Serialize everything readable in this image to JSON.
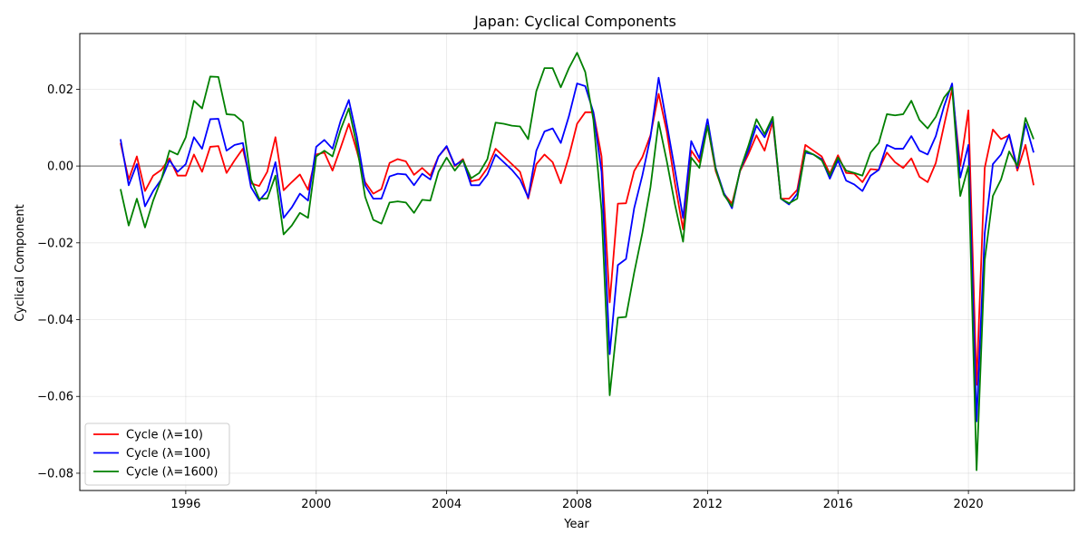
{
  "chart_data": {
    "type": "line",
    "title": "Japan: Cyclical Components",
    "xlabel": "Year",
    "ylabel": "Cyclical Component",
    "xlim": [
      1992.75,
      2023.25
    ],
    "ylim": [
      -0.0845,
      0.0345
    ],
    "xticks": [
      1996,
      2000,
      2004,
      2008,
      2012,
      2016,
      2020
    ],
    "yticks": [
      -0.08,
      -0.06,
      -0.04,
      -0.02,
      0.0,
      0.02
    ],
    "ytick_labels": [
      "−0.08",
      "−0.06",
      "−0.04",
      "−0.02",
      "0.00",
      "0.02"
    ],
    "grid": true,
    "zero_line": true,
    "legend_position": "lower-left",
    "x": [
      1994.0,
      1994.25,
      1994.5,
      1994.75,
      1995.0,
      1995.25,
      1995.5,
      1995.75,
      1996.0,
      1996.25,
      1996.5,
      1996.75,
      1997.0,
      1997.25,
      1997.5,
      1997.75,
      1998.0,
      1998.25,
      1998.5,
      1998.75,
      1999.0,
      1999.25,
      1999.5,
      1999.75,
      2000.0,
      2000.25,
      2000.5,
      2000.75,
      2001.0,
      2001.25,
      2001.5,
      2001.75,
      2002.0,
      2002.25,
      2002.5,
      2002.75,
      2003.0,
      2003.25,
      2003.5,
      2003.75,
      2004.0,
      2004.25,
      2004.5,
      2004.75,
      2005.0,
      2005.25,
      2005.5,
      2005.75,
      2006.0,
      2006.25,
      2006.5,
      2006.75,
      2007.0,
      2007.25,
      2007.5,
      2007.75,
      2008.0,
      2008.25,
      2008.5,
      2008.75,
      2009.0,
      2009.25,
      2009.5,
      2009.75,
      2010.0,
      2010.25,
      2010.5,
      2010.75,
      2011.0,
      2011.25,
      2011.5,
      2011.75,
      2012.0,
      2012.25,
      2012.5,
      2012.75,
      2013.0,
      2013.25,
      2013.5,
      2013.75,
      2014.0,
      2014.25,
      2014.5,
      2014.75,
      2015.0,
      2015.25,
      2015.5,
      2015.75,
      2016.0,
      2016.25,
      2016.5,
      2016.75,
      2017.0,
      2017.25,
      2017.5,
      2017.75,
      2018.0,
      2018.25,
      2018.5,
      2018.75,
      2019.0,
      2019.25,
      2019.5,
      2019.75,
      2020.0,
      2020.25,
      2020.5,
      2020.75,
      2021.0,
      2021.25,
      2021.5,
      2021.75,
      2022.0
    ],
    "series": [
      {
        "name": "Cycle (λ=10)",
        "color": "#ff0000",
        "values": [
          0.006,
          -0.0035,
          0.0025,
          -0.0065,
          -0.0025,
          -0.001,
          0.002,
          -0.0025,
          -0.0025,
          0.003,
          -0.0015,
          0.005,
          0.0052,
          -0.0018,
          0.0015,
          0.0045,
          -0.0045,
          -0.0052,
          -0.0015,
          0.0075,
          -0.0063,
          -0.0042,
          -0.0022,
          -0.0062,
          0.003,
          0.0035,
          -0.0012,
          0.0048,
          0.011,
          0.0038,
          -0.0042,
          -0.0072,
          -0.006,
          0.0008,
          0.0018,
          0.0012,
          -0.0023,
          -0.0005,
          -0.0025,
          0.0025,
          0.005,
          0.0,
          0.0018,
          -0.004,
          -0.0035,
          -0.0005,
          0.0045,
          0.0025,
          0.0005,
          -0.0015,
          -0.0085,
          0.0005,
          0.003,
          0.001,
          -0.0045,
          0.0025,
          0.011,
          0.014,
          0.014,
          0.0025,
          -0.0355,
          -0.0098,
          -0.0097,
          -0.0013,
          0.0023,
          0.008,
          0.0188,
          0.009,
          -0.0045,
          -0.0165,
          0.004,
          0.001,
          0.0105,
          -0.0013,
          -0.0072,
          -0.0098,
          -0.0013,
          0.003,
          0.008,
          0.004,
          0.0115,
          -0.0085,
          -0.0085,
          -0.0062,
          0.0055,
          0.004,
          0.0025,
          -0.002,
          0.0028,
          -0.0018,
          -0.002,
          -0.0042,
          -0.0008,
          -0.001,
          0.0035,
          0.001,
          -0.0005,
          0.002,
          -0.0028,
          -0.0042,
          0.0008,
          0.0105,
          0.02,
          0.0,
          0.0145,
          -0.057,
          -0.0005,
          0.0095,
          0.007,
          0.008,
          -0.0012,
          0.0055,
          -0.005
        ]
      },
      {
        "name": "Cycle (λ=100)",
        "color": "#0000ff",
        "values": [
          0.007,
          -0.005,
          0.0005,
          -0.0105,
          -0.0065,
          -0.0035,
          0.0015,
          -0.0015,
          0.0005,
          0.0075,
          0.0045,
          0.0122,
          0.0123,
          0.004,
          0.0055,
          0.006,
          -0.0055,
          -0.009,
          -0.0065,
          0.001,
          -0.0135,
          -0.0108,
          -0.0072,
          -0.009,
          0.005,
          0.0068,
          0.0045,
          0.0118,
          0.0172,
          0.0075,
          -0.005,
          -0.0085,
          -0.0085,
          -0.0027,
          -0.002,
          -0.0022,
          -0.005,
          -0.002,
          -0.0035,
          0.0025,
          0.0052,
          0.0002,
          0.0015,
          -0.005,
          -0.005,
          -0.0022,
          0.003,
          0.001,
          -0.001,
          -0.0035,
          -0.0082,
          0.004,
          0.009,
          0.0098,
          0.006,
          0.013,
          0.0215,
          0.0208,
          0.014,
          -0.0015,
          -0.049,
          -0.0258,
          -0.0242,
          -0.011,
          -0.0025,
          0.0075,
          0.023,
          0.011,
          -0.001,
          -0.0135,
          0.0065,
          0.002,
          0.0122,
          -0.0005,
          -0.007,
          -0.011,
          -0.001,
          0.004,
          0.0105,
          0.0075,
          0.0122,
          -0.0085,
          -0.01,
          -0.0072,
          0.0035,
          0.003,
          0.0018,
          -0.0033,
          0.0015,
          -0.0038,
          -0.0048,
          -0.0065,
          -0.0025,
          -0.001,
          0.0055,
          0.0045,
          0.0045,
          0.0078,
          0.004,
          0.003,
          0.0078,
          0.0155,
          0.0215,
          -0.003,
          0.0055,
          -0.0665,
          -0.0175,
          0.0005,
          0.003,
          0.0082,
          -0.0005,
          0.011,
          0.0035
        ]
      },
      {
        "name": "Cycle (λ=1600)",
        "color": "#008000",
        "values": [
          -0.006,
          -0.0155,
          -0.0085,
          -0.016,
          -0.009,
          -0.0035,
          0.004,
          0.003,
          0.0075,
          0.017,
          0.015,
          0.0233,
          0.0232,
          0.0135,
          0.0133,
          0.0115,
          -0.0035,
          -0.0085,
          -0.0085,
          -0.0025,
          -0.0178,
          -0.0155,
          -0.0122,
          -0.0135,
          0.0025,
          0.004,
          0.0025,
          0.0095,
          0.015,
          0.0052,
          -0.008,
          -0.014,
          -0.015,
          -0.0095,
          -0.0092,
          -0.0095,
          -0.0122,
          -0.0088,
          -0.009,
          -0.0015,
          0.0022,
          -0.0012,
          0.0015,
          -0.0032,
          -0.0018,
          0.0018,
          0.0113,
          0.011,
          0.0105,
          0.0103,
          0.007,
          0.0195,
          0.0255,
          0.0255,
          0.0205,
          0.0255,
          0.0295,
          0.0245,
          0.012,
          -0.0115,
          -0.0597,
          -0.0395,
          -0.0393,
          -0.0278,
          -0.0175,
          -0.0055,
          0.0115,
          0.0013,
          -0.01,
          -0.0197,
          0.0022,
          -0.0005,
          0.0105,
          -0.0008,
          -0.0075,
          -0.0105,
          -0.001,
          0.0052,
          0.0122,
          0.0083,
          0.0128,
          -0.0085,
          -0.0097,
          -0.0085,
          0.004,
          0.003,
          0.0015,
          -0.0025,
          0.0022,
          -0.0012,
          -0.0018,
          -0.0025,
          0.0035,
          0.006,
          0.0135,
          0.0132,
          0.0135,
          0.017,
          0.012,
          0.0098,
          0.0128,
          0.0178,
          0.0205,
          -0.0078,
          0.0,
          -0.0792,
          -0.0245,
          -0.0078,
          -0.0035,
          0.0038,
          0.0,
          0.0125,
          0.007
        ]
      }
    ]
  }
}
